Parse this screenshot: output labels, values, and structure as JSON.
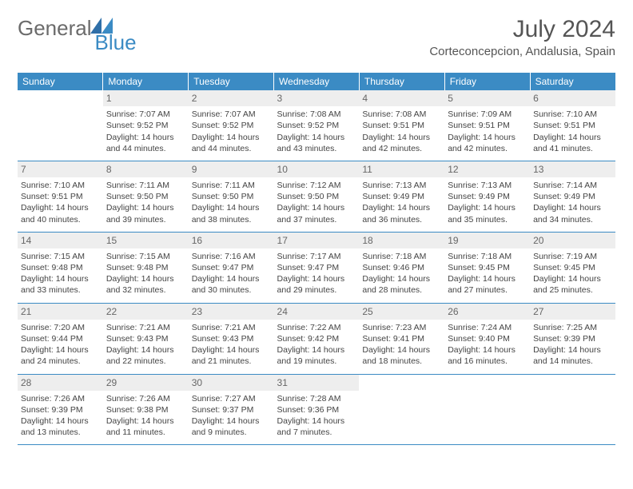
{
  "brand": {
    "word1": "General",
    "word2": "Blue"
  },
  "title": "July 2024",
  "location": "Corteconcepcion, Andalusia, Spain",
  "weekday_labels": [
    "Sunday",
    "Monday",
    "Tuesday",
    "Wednesday",
    "Thursday",
    "Friday",
    "Saturday"
  ],
  "colors": {
    "header_bg": "#3b8bc4",
    "header_text": "#ffffff",
    "daynum_bg": "#eeeeee",
    "text": "#444444",
    "rule": "#3b8bc4",
    "logo_gray": "#6b6b6b",
    "logo_blue": "#3b8bc4"
  },
  "fonts": {
    "title_size_pt": 30,
    "location_size_pt": 15,
    "weekday_size_pt": 12,
    "daynum_size_pt": 12,
    "cell_size_pt": 10.5
  },
  "grid": {
    "first_weekday_index": 1,
    "weeks": [
      [
        null,
        {
          "n": "1",
          "sr": "Sunrise: 7:07 AM",
          "ss": "Sunset: 9:52 PM",
          "d1": "Daylight: 14 hours",
          "d2": "and 44 minutes."
        },
        {
          "n": "2",
          "sr": "Sunrise: 7:07 AM",
          "ss": "Sunset: 9:52 PM",
          "d1": "Daylight: 14 hours",
          "d2": "and 44 minutes."
        },
        {
          "n": "3",
          "sr": "Sunrise: 7:08 AM",
          "ss": "Sunset: 9:52 PM",
          "d1": "Daylight: 14 hours",
          "d2": "and 43 minutes."
        },
        {
          "n": "4",
          "sr": "Sunrise: 7:08 AM",
          "ss": "Sunset: 9:51 PM",
          "d1": "Daylight: 14 hours",
          "d2": "and 42 minutes."
        },
        {
          "n": "5",
          "sr": "Sunrise: 7:09 AM",
          "ss": "Sunset: 9:51 PM",
          "d1": "Daylight: 14 hours",
          "d2": "and 42 minutes."
        },
        {
          "n": "6",
          "sr": "Sunrise: 7:10 AM",
          "ss": "Sunset: 9:51 PM",
          "d1": "Daylight: 14 hours",
          "d2": "and 41 minutes."
        }
      ],
      [
        {
          "n": "7",
          "sr": "Sunrise: 7:10 AM",
          "ss": "Sunset: 9:51 PM",
          "d1": "Daylight: 14 hours",
          "d2": "and 40 minutes."
        },
        {
          "n": "8",
          "sr": "Sunrise: 7:11 AM",
          "ss": "Sunset: 9:50 PM",
          "d1": "Daylight: 14 hours",
          "d2": "and 39 minutes."
        },
        {
          "n": "9",
          "sr": "Sunrise: 7:11 AM",
          "ss": "Sunset: 9:50 PM",
          "d1": "Daylight: 14 hours",
          "d2": "and 38 minutes."
        },
        {
          "n": "10",
          "sr": "Sunrise: 7:12 AM",
          "ss": "Sunset: 9:50 PM",
          "d1": "Daylight: 14 hours",
          "d2": "and 37 minutes."
        },
        {
          "n": "11",
          "sr": "Sunrise: 7:13 AM",
          "ss": "Sunset: 9:49 PM",
          "d1": "Daylight: 14 hours",
          "d2": "and 36 minutes."
        },
        {
          "n": "12",
          "sr": "Sunrise: 7:13 AM",
          "ss": "Sunset: 9:49 PM",
          "d1": "Daylight: 14 hours",
          "d2": "and 35 minutes."
        },
        {
          "n": "13",
          "sr": "Sunrise: 7:14 AM",
          "ss": "Sunset: 9:49 PM",
          "d1": "Daylight: 14 hours",
          "d2": "and 34 minutes."
        }
      ],
      [
        {
          "n": "14",
          "sr": "Sunrise: 7:15 AM",
          "ss": "Sunset: 9:48 PM",
          "d1": "Daylight: 14 hours",
          "d2": "and 33 minutes."
        },
        {
          "n": "15",
          "sr": "Sunrise: 7:15 AM",
          "ss": "Sunset: 9:48 PM",
          "d1": "Daylight: 14 hours",
          "d2": "and 32 minutes."
        },
        {
          "n": "16",
          "sr": "Sunrise: 7:16 AM",
          "ss": "Sunset: 9:47 PM",
          "d1": "Daylight: 14 hours",
          "d2": "and 30 minutes."
        },
        {
          "n": "17",
          "sr": "Sunrise: 7:17 AM",
          "ss": "Sunset: 9:47 PM",
          "d1": "Daylight: 14 hours",
          "d2": "and 29 minutes."
        },
        {
          "n": "18",
          "sr": "Sunrise: 7:18 AM",
          "ss": "Sunset: 9:46 PM",
          "d1": "Daylight: 14 hours",
          "d2": "and 28 minutes."
        },
        {
          "n": "19",
          "sr": "Sunrise: 7:18 AM",
          "ss": "Sunset: 9:45 PM",
          "d1": "Daylight: 14 hours",
          "d2": "and 27 minutes."
        },
        {
          "n": "20",
          "sr": "Sunrise: 7:19 AM",
          "ss": "Sunset: 9:45 PM",
          "d1": "Daylight: 14 hours",
          "d2": "and 25 minutes."
        }
      ],
      [
        {
          "n": "21",
          "sr": "Sunrise: 7:20 AM",
          "ss": "Sunset: 9:44 PM",
          "d1": "Daylight: 14 hours",
          "d2": "and 24 minutes."
        },
        {
          "n": "22",
          "sr": "Sunrise: 7:21 AM",
          "ss": "Sunset: 9:43 PM",
          "d1": "Daylight: 14 hours",
          "d2": "and 22 minutes."
        },
        {
          "n": "23",
          "sr": "Sunrise: 7:21 AM",
          "ss": "Sunset: 9:43 PM",
          "d1": "Daylight: 14 hours",
          "d2": "and 21 minutes."
        },
        {
          "n": "24",
          "sr": "Sunrise: 7:22 AM",
          "ss": "Sunset: 9:42 PM",
          "d1": "Daylight: 14 hours",
          "d2": "and 19 minutes."
        },
        {
          "n": "25",
          "sr": "Sunrise: 7:23 AM",
          "ss": "Sunset: 9:41 PM",
          "d1": "Daylight: 14 hours",
          "d2": "and 18 minutes."
        },
        {
          "n": "26",
          "sr": "Sunrise: 7:24 AM",
          "ss": "Sunset: 9:40 PM",
          "d1": "Daylight: 14 hours",
          "d2": "and 16 minutes."
        },
        {
          "n": "27",
          "sr": "Sunrise: 7:25 AM",
          "ss": "Sunset: 9:39 PM",
          "d1": "Daylight: 14 hours",
          "d2": "and 14 minutes."
        }
      ],
      [
        {
          "n": "28",
          "sr": "Sunrise: 7:26 AM",
          "ss": "Sunset: 9:39 PM",
          "d1": "Daylight: 14 hours",
          "d2": "and 13 minutes."
        },
        {
          "n": "29",
          "sr": "Sunrise: 7:26 AM",
          "ss": "Sunset: 9:38 PM",
          "d1": "Daylight: 14 hours",
          "d2": "and 11 minutes."
        },
        {
          "n": "30",
          "sr": "Sunrise: 7:27 AM",
          "ss": "Sunset: 9:37 PM",
          "d1": "Daylight: 14 hours",
          "d2": "and 9 minutes."
        },
        {
          "n": "31",
          "sr": "Sunrise: 7:28 AM",
          "ss": "Sunset: 9:36 PM",
          "d1": "Daylight: 14 hours",
          "d2": "and 7 minutes."
        },
        null,
        null,
        null
      ]
    ]
  }
}
